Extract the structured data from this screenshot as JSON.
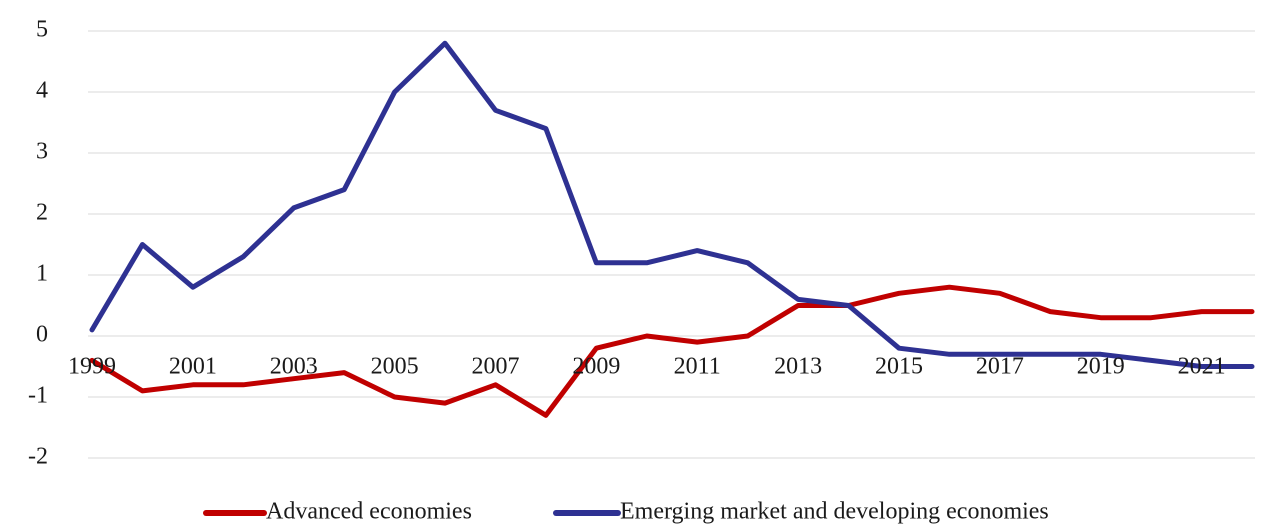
{
  "chart_data": {
    "type": "line",
    "title": "",
    "xlabel": "",
    "ylabel": "",
    "ylim": [
      -2,
      5
    ],
    "yticks": [
      5,
      4,
      3,
      2,
      1,
      0,
      -1,
      -2
    ],
    "x": [
      1999,
      2000,
      2001,
      2002,
      2003,
      2004,
      2005,
      2006,
      2007,
      2008,
      2009,
      2010,
      2011,
      2012,
      2013,
      2014,
      2015,
      2016,
      2017,
      2018,
      2019,
      2020,
      2021,
      2022
    ],
    "xtick_labels": [
      "1999",
      "2001",
      "2003",
      "2005",
      "2007",
      "2009",
      "2011",
      "2013",
      "2015",
      "2017",
      "2019",
      "2021"
    ],
    "grid": true,
    "legend_position": "bottom",
    "series": [
      {
        "name": "Advanced economies",
        "color": "#c00000",
        "values": [
          -0.4,
          -0.9,
          -0.8,
          -0.8,
          -0.7,
          -0.6,
          -1.0,
          -1.1,
          -0.8,
          -1.3,
          -0.2,
          0.0,
          -0.1,
          0.0,
          0.5,
          0.5,
          0.7,
          0.8,
          0.7,
          0.4,
          0.3,
          0.3,
          0.4,
          0.4
        ]
      },
      {
        "name": "Emerging market and developing economies",
        "color": "#2e3192",
        "values": [
          0.1,
          1.5,
          0.8,
          1.3,
          2.1,
          2.4,
          4.0,
          4.8,
          3.7,
          3.4,
          1.2,
          1.2,
          1.4,
          1.2,
          0.6,
          0.5,
          -0.2,
          -0.3,
          -0.3,
          -0.3,
          -0.3,
          -0.4,
          -0.5,
          -0.5
        ]
      }
    ]
  }
}
